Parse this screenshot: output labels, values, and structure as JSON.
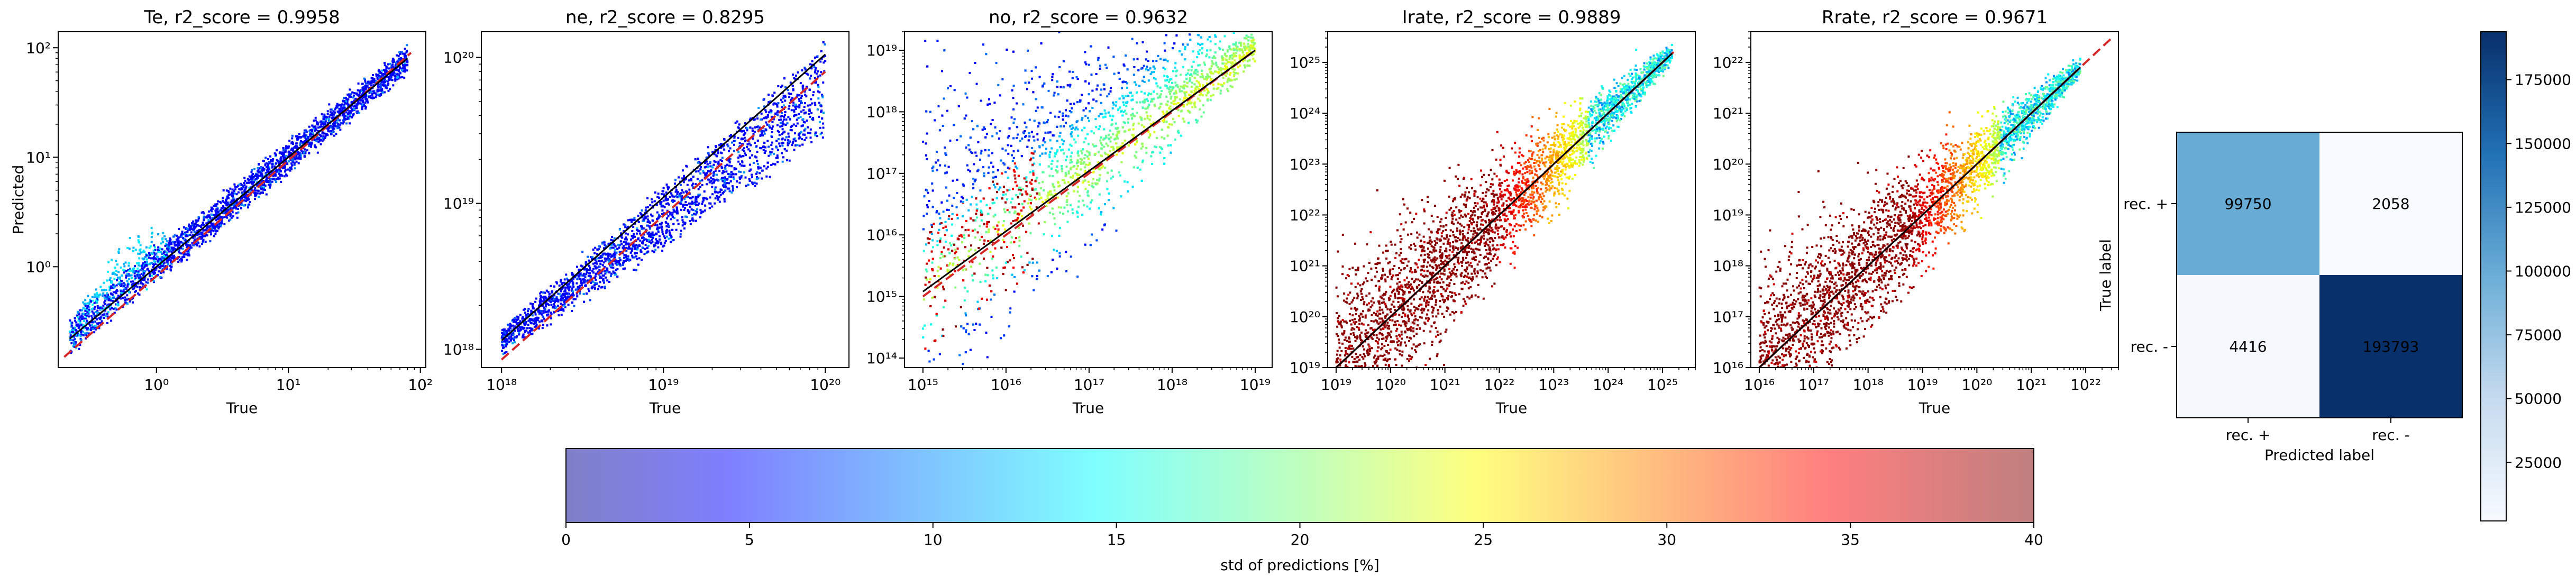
{
  "chart_data": [
    {
      "type": "scatter",
      "title": "Te, r2_score = 0.9958",
      "xlabel": "True",
      "ylabel": "Predicted",
      "xscale": "log",
      "yscale": "log",
      "xlim": [
        0.18,
        110
      ],
      "ylim": [
        0.12,
        140
      ],
      "xticks": [
        {
          "v": 1,
          "t": "10⁰"
        },
        {
          "v": 10,
          "t": "10¹"
        },
        {
          "v": 100,
          "t": "10²"
        }
      ],
      "yticks": [
        {
          "v": 1,
          "t": "10⁰"
        },
        {
          "v": 10,
          "t": "10¹"
        },
        {
          "v": 100,
          "t": "10²"
        }
      ],
      "trend": {
        "x": [
          0.22,
          80
        ],
        "y": [
          0.22,
          80
        ]
      },
      "band": {
        "x": [
          0.22,
          80
        ],
        "y_lo": [
          0.17,
          62
        ],
        "y_hi": [
          0.32,
          98
        ]
      },
      "hump": {
        "x": [
          0.24,
          1.2
        ],
        "y": [
          0.28,
          1.55
        ]
      },
      "ideal_line": {
        "x": [
          0.2,
          85
        ],
        "y": [
          0.15,
          90
        ]
      },
      "noise": "low",
      "grid": false
    },
    {
      "type": "scatter",
      "title": "ne, r2_score = 0.8295",
      "xlabel": "True",
      "ylabel": "",
      "xscale": "log",
      "yscale": "log",
      "xlim": [
        7.5e+17,
        1.4e+20
      ],
      "ylim": [
        7.5e+17,
        1.5e+20
      ],
      "xticks": [
        {
          "v": 1e+18,
          "t": "10¹⁸"
        },
        {
          "v": 1e+19,
          "t": "10¹⁹"
        },
        {
          "v": 1e+20,
          "t": "10²⁰"
        }
      ],
      "yticks": [
        {
          "v": 1e+18,
          "t": "10¹⁸"
        },
        {
          "v": 1e+19,
          "t": "10¹⁹"
        },
        {
          "v": 1e+20,
          "t": "10²⁰"
        }
      ],
      "trend": {
        "x": [
          1e+18,
          1e+20
        ],
        "y": [
          1.15e+18,
          1.05e+20
        ]
      },
      "band": {
        "x": [
          1e+18,
          1e+20
        ],
        "y_lo": [
          1e+18,
          2.8e+19
        ],
        "y_hi": [
          1.3e+18,
          1.15e+20
        ]
      },
      "ideal_line": {
        "x": [
          1e+18,
          1e+20
        ],
        "y": [
          8.5e+17,
          8e+19
        ]
      },
      "noise": "low",
      "grid": false
    },
    {
      "type": "scatter",
      "title": "no, r2_score = 0.9632",
      "xlabel": "True",
      "ylabel": "",
      "xscale": "log",
      "yscale": "log",
      "xlim": [
        600000000000000.0,
        1.6e+19
      ],
      "ylim": [
        70000000000000.0,
        2e+19
      ],
      "xticks": [
        {
          "v": 1000000000000000.0,
          "t": "10¹⁵"
        },
        {
          "v": 1e+16,
          "t": "10¹⁶"
        },
        {
          "v": 1e+17,
          "t": "10¹⁷"
        },
        {
          "v": 1e+18,
          "t": "10¹⁸"
        },
        {
          "v": 1e+19,
          "t": "10¹⁹"
        }
      ],
      "yticks": [
        {
          "v": 100000000000000.0,
          "t": "10¹⁴"
        },
        {
          "v": 1000000000000000.0,
          "t": "10¹⁵"
        },
        {
          "v": 1e+16,
          "t": "10¹⁶"
        },
        {
          "v": 1e+17,
          "t": "10¹⁷"
        },
        {
          "v": 1e+18,
          "t": "10¹⁸"
        },
        {
          "v": 1e+19,
          "t": "10¹⁹"
        }
      ],
      "trend": {
        "x": [
          1000000000000000.0,
          1e+19
        ],
        "y": [
          1200000000000000.0,
          1e+19
        ]
      },
      "band": {
        "x": [
          1000000000000000.0,
          1e+19
        ],
        "y_lo": [
          800000000000000.0,
          3e+18
        ],
        "y_hi": [
          4e+16,
          1.2e+19
        ]
      },
      "ideal_line": {
        "x": [
          1000000000000000.0,
          1e+19
        ],
        "y": [
          1000000000000000.0,
          1e+19
        ]
      },
      "noise": "high",
      "grid": false
    },
    {
      "type": "scatter",
      "title": "Irate, r2_score = 0.9889",
      "xlabel": "True",
      "ylabel": "",
      "xscale": "log",
      "yscale": "log",
      "xlim": [
        7e+18,
        4e+25
      ],
      "ylim": [
        1e+19,
        4e+25
      ],
      "xticks": [
        {
          "v": 1e+19,
          "t": "10¹⁹"
        },
        {
          "v": 1e+20,
          "t": "10²⁰"
        },
        {
          "v": 1e+21,
          "t": "10²¹"
        },
        {
          "v": 1e+22,
          "t": "10²²"
        },
        {
          "v": 1e+23,
          "t": "10²³"
        },
        {
          "v": 1e+24,
          "t": "10²⁴"
        },
        {
          "v": 1e+25,
          "t": "10²⁵"
        }
      ],
      "yticks": [
        {
          "v": 1e+19,
          "t": "10¹⁹"
        },
        {
          "v": 1e+20,
          "t": "10²⁰"
        },
        {
          "v": 1e+21,
          "t": "10²¹"
        },
        {
          "v": 1e+22,
          "t": "10²²"
        },
        {
          "v": 1e+23,
          "t": "10²³"
        },
        {
          "v": 1e+24,
          "t": "10²⁴"
        },
        {
          "v": 1e+25,
          "t": "10²⁵"
        }
      ],
      "trend": {
        "x": [
          1e+19,
          1.5e+25
        ],
        "y": [
          1e+19,
          1.5e+25
        ]
      },
      "ideal_line": {
        "x": [
          1e+19,
          1.6e+25
        ],
        "y": [
          1e+19,
          1.6e+25
        ]
      },
      "noise": "veryhigh",
      "grid": false
    },
    {
      "type": "scatter",
      "title": "Rrate, r2_score = 0.9671",
      "xlabel": "True",
      "ylabel": "",
      "xscale": "log",
      "yscale": "log",
      "xlim": [
        7000000000000000.0,
        4e+22
      ],
      "ylim": [
        1e+16,
        4e+22
      ],
      "xticks": [
        {
          "v": 1e+16,
          "t": "10¹⁶"
        },
        {
          "v": 1e+17,
          "t": "10¹⁷"
        },
        {
          "v": 1e+18,
          "t": "10¹⁸"
        },
        {
          "v": 1e+19,
          "t": "10¹⁹"
        },
        {
          "v": 1e+20,
          "t": "10²⁰"
        },
        {
          "v": 1e+21,
          "t": "10²¹"
        },
        {
          "v": 1e+22,
          "t": "10²²"
        }
      ],
      "yticks": [
        {
          "v": 1e+16,
          "t": "10¹⁶"
        },
        {
          "v": 1e+17,
          "t": "10¹⁷"
        },
        {
          "v": 1e+18,
          "t": "10¹⁸"
        },
        {
          "v": 1e+19,
          "t": "10¹⁹"
        },
        {
          "v": 1e+20,
          "t": "10²⁰"
        },
        {
          "v": 1e+21,
          "t": "10²¹"
        },
        {
          "v": 1e+22,
          "t": "10²²"
        }
      ],
      "trend": {
        "x": [
          1e+16,
          8e+21
        ],
        "y": [
          1e+16,
          8e+21
        ]
      },
      "ideal_line": {
        "x": [
          1e+16,
          3e+22
        ],
        "y": [
          1e+16,
          3e+22
        ]
      },
      "noise": "veryhigh",
      "grid": false
    },
    {
      "type": "heatmap",
      "xlabel": "Predicted label",
      "ylabel": "True label",
      "categories_x": [
        "rec. +",
        "rec. -"
      ],
      "categories_y": [
        "rec. +",
        "rec. -"
      ],
      "values": [
        [
          99750,
          2058
        ],
        [
          4416,
          193793
        ]
      ],
      "colormap": "Blues",
      "colorbar": {
        "ticks": [
          25000,
          50000,
          75000,
          100000,
          125000,
          150000,
          175000
        ],
        "labels": [
          "25000",
          "50000",
          "75000",
          "100000",
          "125000",
          "150000",
          "175000"
        ],
        "min": 2058,
        "max": 193793
      }
    },
    {
      "type": "colorbar",
      "label": "std of predictions [%]",
      "range": [
        0,
        40
      ],
      "ticks": [
        0,
        5,
        10,
        15,
        20,
        25,
        30,
        35,
        40
      ],
      "tick_labels": [
        "0",
        "5",
        "10",
        "15",
        "20",
        "25",
        "30",
        "35",
        "40"
      ],
      "colormap": "jet"
    }
  ],
  "colors": {
    "ideal_line": "#d62728",
    "trend_line": "#000000",
    "point_low": "#0000ff",
    "point_high": "#8b0000"
  }
}
